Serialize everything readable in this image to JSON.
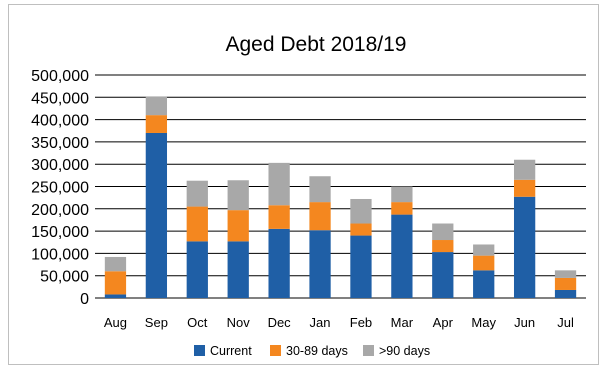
{
  "chart_data": {
    "type": "bar",
    "stacked": true,
    "title": "Aged Debt 2018/19",
    "xlabel": "",
    "ylabel": "",
    "ylim": [
      0,
      500000
    ],
    "yticks": [
      "0",
      "50,000",
      "100,000",
      "150,000",
      "200,000",
      "250,000",
      "300,000",
      "350,000",
      "400,000",
      "450,000",
      "500,000"
    ],
    "grid": true,
    "legend_position": "bottom",
    "categories": [
      "Aug",
      "Sep",
      "Oct",
      "Nov",
      "Dec",
      "Jan",
      "Feb",
      "Mar",
      "Apr",
      "May",
      "Jun",
      "Jul"
    ],
    "series": [
      {
        "name": "Current",
        "color": "#1f5fa6",
        "values": [
          8000,
          370000,
          127000,
          127000,
          155000,
          152000,
          140000,
          187000,
          103000,
          62000,
          227000,
          18000
        ]
      },
      {
        "name": "30-89 days",
        "color": "#f4871f",
        "values": [
          52000,
          40000,
          78000,
          70000,
          53000,
          63000,
          27000,
          28000,
          27000,
          33000,
          38000,
          27000
        ]
      },
      {
        "name": ">90 days",
        "color": "#a8a8a8",
        "values": [
          32000,
          42000,
          58000,
          67000,
          95000,
          58000,
          55000,
          35000,
          37000,
          25000,
          45000,
          17000
        ]
      }
    ]
  }
}
